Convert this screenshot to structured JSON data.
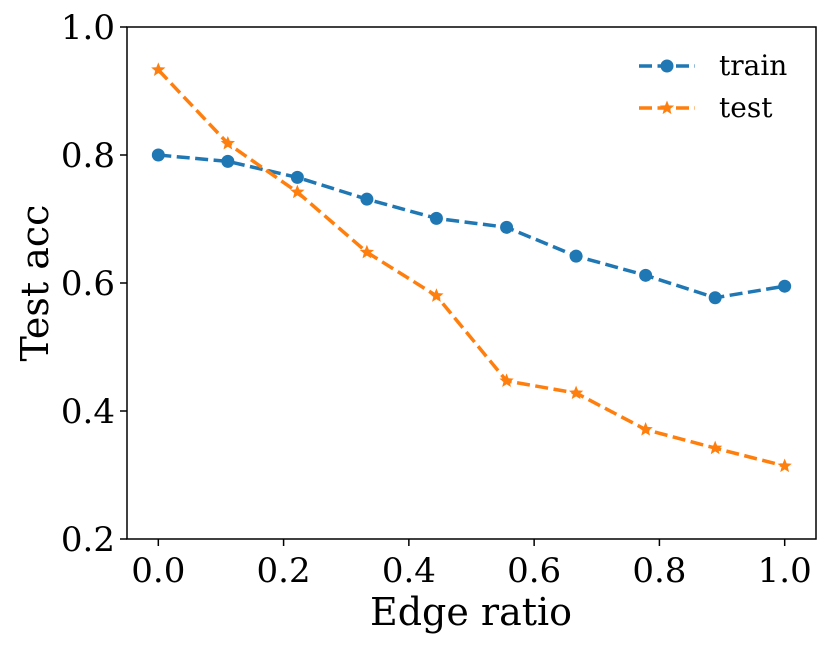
{
  "chart_data": {
    "type": "line",
    "title": "",
    "xlabel": "Edge ratio",
    "ylabel": "Test acc",
    "xlim": [
      -0.05,
      1.05
    ],
    "ylim": [
      0.2,
      1.0
    ],
    "xticks": [
      0.0,
      0.2,
      0.4,
      0.6,
      0.8,
      1.0
    ],
    "yticks": [
      0.2,
      0.4,
      0.6,
      0.8,
      1.0
    ],
    "xtick_labels": [
      "0.0",
      "0.2",
      "0.4",
      "0.6",
      "0.8",
      "1.0"
    ],
    "ytick_labels": [
      "0.2",
      "0.4",
      "0.6",
      "0.8",
      "1.0"
    ],
    "grid": false,
    "legend_position": "top-right",
    "x": [
      0.0,
      0.111,
      0.222,
      0.333,
      0.444,
      0.556,
      0.667,
      0.778,
      0.889,
      1.0
    ],
    "series": [
      {
        "name": "train",
        "color": "#1f77b4",
        "marker": "circle",
        "linestyle": "dashed",
        "values": [
          0.8,
          0.79,
          0.765,
          0.731,
          0.701,
          0.687,
          0.642,
          0.612,
          0.577,
          0.595
        ]
      },
      {
        "name": "test",
        "color": "#ff7f0e",
        "marker": "star",
        "linestyle": "dashed",
        "values": [
          0.933,
          0.818,
          0.742,
          0.648,
          0.58,
          0.447,
          0.428,
          0.371,
          0.342,
          0.314
        ]
      }
    ]
  }
}
